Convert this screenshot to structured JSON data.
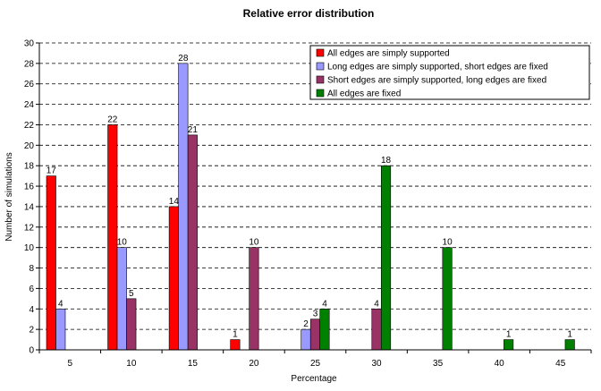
{
  "chart_data": {
    "type": "bar",
    "title": "Relative error distribution",
    "xlabel": "Percentage",
    "ylabel": "Number of simulations",
    "categories": [
      "5",
      "10",
      "15",
      "20",
      "25",
      "30",
      "35",
      "40",
      "45"
    ],
    "ylim": [
      0,
      30
    ],
    "ystep": 2,
    "grid": true,
    "legend_position": "top-right",
    "series": [
      {
        "name": "All edges are simply supported",
        "color": "#ff0000",
        "values": [
          17,
          22,
          14,
          1,
          null,
          null,
          null,
          null,
          null
        ]
      },
      {
        "name": "Long edges are simply supported, short edges are fixed",
        "color": "#9999ff",
        "values": [
          4,
          10,
          28,
          null,
          2,
          null,
          null,
          null,
          null
        ]
      },
      {
        "name": "Short edges are simply supported, long edges are fixed",
        "color": "#993366",
        "values": [
          null,
          5,
          21,
          10,
          3,
          4,
          null,
          null,
          null
        ]
      },
      {
        "name": "All edges are fixed",
        "color": "#008000",
        "values": [
          null,
          null,
          null,
          null,
          4,
          18,
          10,
          1,
          1
        ]
      }
    ]
  }
}
